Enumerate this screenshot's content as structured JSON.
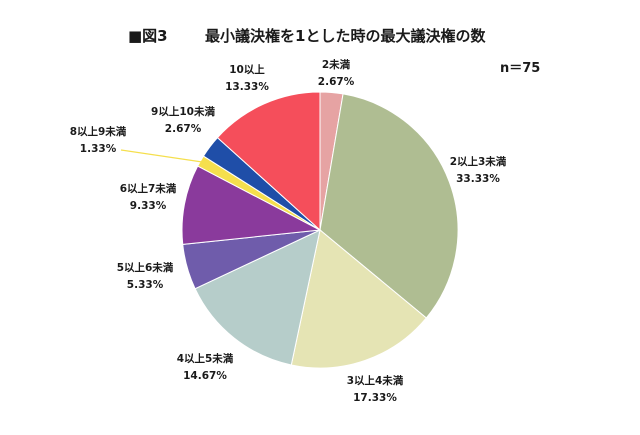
{
  "figure_label": "■図3",
  "sample_size": "n＝75",
  "chart_data": {
    "type": "pie",
    "title": "最小議決権を1とした時の最大議決権の数",
    "start": "12 o'clock",
    "direction": "clockwise",
    "slices": [
      {
        "label": "2未満",
        "value": 2.67,
        "display": "2.67%",
        "color": "#e6a3a3"
      },
      {
        "label": "2以上3未満",
        "value": 33.33,
        "display": "33.33%",
        "color": "#afbd92"
      },
      {
        "label": "3以上4未満",
        "value": 17.33,
        "display": "17.33%",
        "color": "#e5e4b4"
      },
      {
        "label": "4以上5未満",
        "value": 14.67,
        "display": "14.67%",
        "color": "#b6cdca"
      },
      {
        "label": "5以上6未満",
        "value": 5.33,
        "display": "5.33%",
        "color": "#6f5cab"
      },
      {
        "label": "6以上7未満",
        "value": 9.33,
        "display": "9.33%",
        "color": "#8a3a9c"
      },
      {
        "label": "8以上9未満",
        "value": 1.33,
        "display": "1.33%",
        "color": "#f5df4d"
      },
      {
        "label": "9以上10未満",
        "value": 2.67,
        "display": "2.67%",
        "color": "#1f4ea8"
      },
      {
        "label": "10以上",
        "value": 13.33,
        "display": "13.33%",
        "color": "#f54e5b"
      }
    ]
  }
}
